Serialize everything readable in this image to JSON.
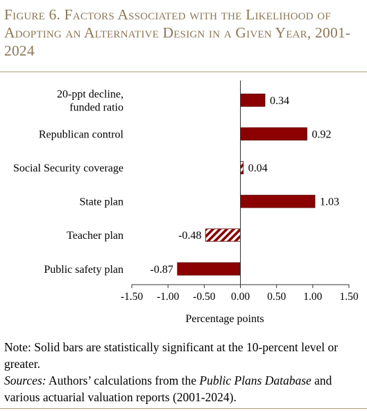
{
  "figure": {
    "title": "Figure 6. Factors Associated with the Likelihood of Adopting an Alternative Design in a Given Year, 2001-2024"
  },
  "chart_data": {
    "type": "bar",
    "orientation": "horizontal",
    "categories": [
      [
        "20-ppt decline,",
        "funded ratio"
      ],
      [
        "Republican control"
      ],
      [
        "Social Security coverage"
      ],
      [
        "State plan"
      ],
      [
        "Teacher plan"
      ],
      [
        "Public safety plan"
      ]
    ],
    "values": [
      0.34,
      0.92,
      0.04,
      1.03,
      -0.48,
      -0.87
    ],
    "value_labels": [
      "0.34",
      "0.92",
      "0.04",
      "1.03",
      "-0.48",
      "-0.87"
    ],
    "significant": [
      true,
      true,
      false,
      true,
      false,
      true
    ],
    "xlabel": "Percentage points",
    "xlim": [
      -1.5,
      1.5
    ],
    "xticks": [
      -1.5,
      -1.0,
      -0.5,
      0.0,
      0.5,
      1.0,
      1.5
    ],
    "xtick_labels": [
      "-1.50",
      "-1.00",
      "-0.50",
      "0.00",
      "0.50",
      "1.00",
      "1.50"
    ],
    "grid": false,
    "colors": {
      "bar": "#8b0000",
      "bar_stroke": "#5a0000",
      "axis": "#333333"
    }
  },
  "notes": {
    "note": "Note: Solid bars are statistically significant at the 10-percent level or greater.",
    "sources_label": "Sources:",
    "sources_text_1": " Authors’ calculations from the ",
    "sources_title": "Public Plans Database",
    "sources_text_2": " and various actuarial valuation reports (2001-2024)."
  }
}
